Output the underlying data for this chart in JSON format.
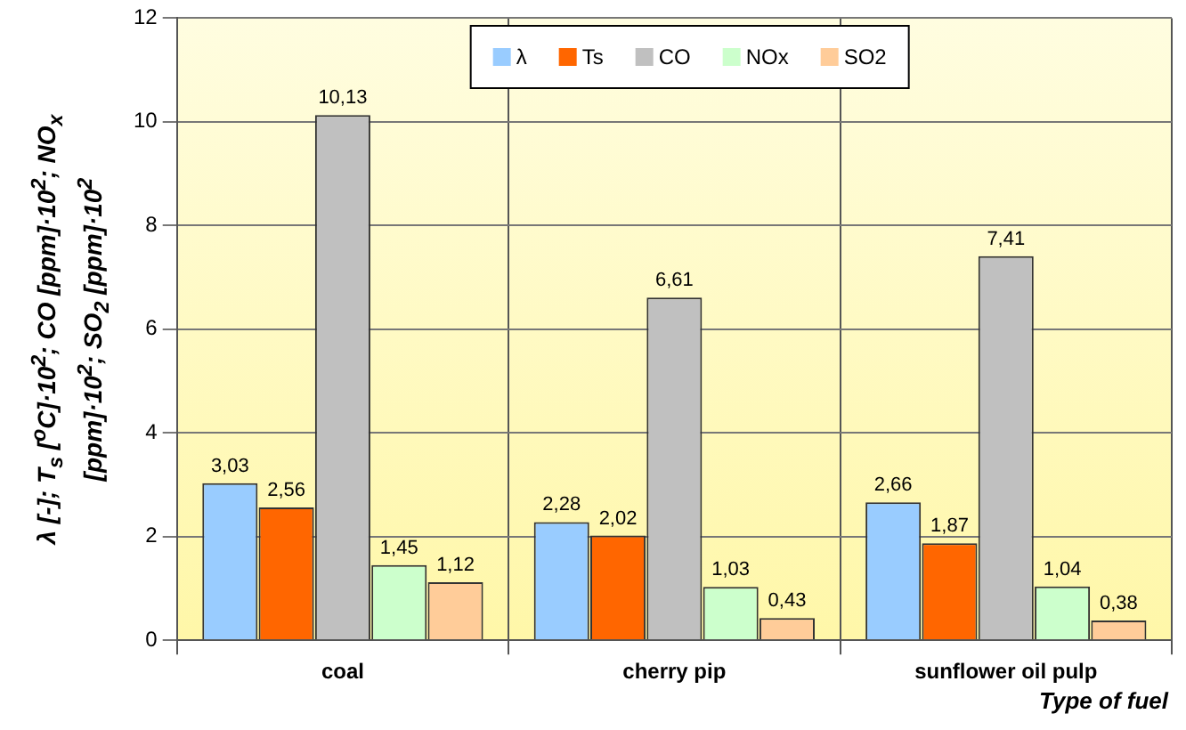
{
  "chart_data": {
    "type": "bar",
    "ylabel": "λ [-]; T$_{s}$ [$^{o}$C]·10$^{2}$; CO [ppm]·10$^{2}$; NO$_{x}$ [ppm]·10$^{2}$; SO$_{2}$ [ppm]·10$^{2}$",
    "xlabel": "Type of fuel",
    "categories": [
      "coal",
      "cherry pip",
      "sunflower oil pulp"
    ],
    "series": [
      {
        "name": "λ",
        "color": "#99ccff",
        "values": [
          3.03,
          2.28,
          2.66
        ],
        "value_labels": [
          "3,03",
          "2,28",
          "2,66"
        ]
      },
      {
        "name": "Ts",
        "color": "#ff6600",
        "values": [
          2.56,
          2.02,
          1.87
        ],
        "value_labels": [
          "2,56",
          "2,02",
          "1,87"
        ]
      },
      {
        "name": "CO",
        "color": "#c0c0c0",
        "values": [
          10.13,
          6.61,
          7.41
        ],
        "value_labels": [
          "10,13",
          "6,61",
          "7,41"
        ]
      },
      {
        "name": "NOx",
        "color": "#ccffcc",
        "values": [
          1.45,
          1.03,
          1.04
        ],
        "value_labels": [
          "1,45",
          "1,03",
          "1,04"
        ]
      },
      {
        "name": "SO2",
        "color": "#ffcc99",
        "values": [
          1.12,
          0.43,
          0.38
        ],
        "value_labels": [
          "1,12",
          "0,43",
          "0,38"
        ]
      }
    ],
    "ylim": [
      0,
      12
    ],
    "yticks": [
      0,
      2,
      4,
      6,
      8,
      10,
      12
    ],
    "grid": true,
    "legend": "top"
  }
}
